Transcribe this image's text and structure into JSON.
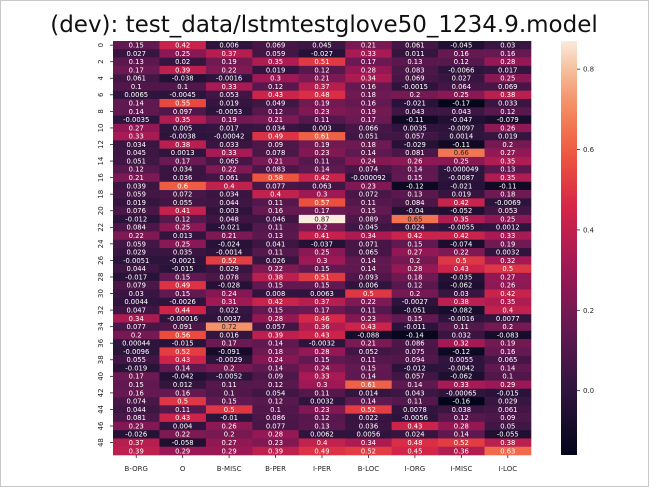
{
  "chart_data": {
    "type": "heatmap",
    "title": "(dev): test_data/lstmtestglove50_1234.9.model",
    "xlabel": "",
    "ylabel": "",
    "columns": [
      "B-ORG",
      "O",
      "B-MISC",
      "B-PER",
      "I-PER",
      "B-LOC",
      "I-ORG",
      "I-MISC",
      "I-LOC"
    ],
    "row_tick_labels": [
      "0",
      "2",
      "4",
      "6",
      "8",
      "10",
      "12",
      "14",
      "16",
      "18",
      "20",
      "22",
      "24",
      "26",
      "28",
      "30",
      "32",
      "34",
      "36",
      "38",
      "40",
      "42",
      "44",
      "46",
      "48"
    ],
    "colorbar": {
      "min": -0.16,
      "max": 0.87,
      "ticks": [
        0.8,
        0.6,
        0.4,
        0.2,
        0.0
      ],
      "tick_labels": [
        "0.8",
        "0.6",
        "0.4",
        "0.2",
        "0.0"
      ]
    },
    "grid": false,
    "values": [
      [
        0.15,
        0.42,
        0.006,
        0.069,
        0.045,
        0.21,
        0.061,
        -0.045,
        0.03
      ],
      [
        0.027,
        0.25,
        0.37,
        0.059,
        -0.027,
        0.33,
        0.011,
        0.16,
        0.16
      ],
      [
        0.13,
        0.02,
        0.19,
        0.35,
        0.51,
        0.17,
        0.13,
        0.12,
        0.28
      ],
      [
        0.17,
        0.39,
        0.22,
        0.019,
        0.12,
        0.28,
        0.083,
        -0.0066,
        0.017
      ],
      [
        0.061,
        -0.038,
        -0.0016,
        0.3,
        0.21,
        0.34,
        0.069,
        0.027,
        0.25
      ],
      [
        0.1,
        0.1,
        0.33,
        0.12,
        0.37,
        0.16,
        -0.0015,
        0.064,
        0.069
      ],
      [
        0.0065,
        -0.0045,
        0.053,
        0.43,
        0.48,
        0.18,
        0.2,
        0.25,
        0.38
      ],
      [
        0.14,
        0.55,
        0.019,
        0.049,
        0.19,
        0.16,
        -0.021,
        -0.17,
        0.033
      ],
      [
        0.14,
        0.097,
        -0.0053,
        0.12,
        0.23,
        0.19,
        0.043,
        0.043,
        0.12
      ],
      [
        -0.0035,
        0.35,
        0.19,
        0.21,
        0.11,
        0.17,
        -0.11,
        -0.047,
        -0.079
      ],
      [
        0.27,
        0.005,
        0.017,
        0.034,
        0.003,
        0.066,
        0.0035,
        -0.0097,
        0.26
      ],
      [
        0.33,
        -0.0038,
        -0.00042,
        0.49,
        0.61,
        0.051,
        0.057,
        0.0014,
        0.019
      ],
      [
        0.034,
        0.38,
        0.033,
        0.09,
        0.19,
        0.18,
        -0.029,
        -0.11,
        0.2
      ],
      [
        0.045,
        0.0013,
        0.33,
        0.078,
        0.23,
        0.14,
        0.081,
        0.66,
        0.27
      ],
      [
        0.051,
        0.17,
        0.065,
        0.21,
        0.11,
        0.24,
        0.26,
        0.25,
        0.35
      ],
      [
        0.12,
        0.034,
        0.22,
        0.083,
        0.14,
        0.074,
        0.14,
        -4.9e-05,
        0.13
      ],
      [
        0.21,
        0.036,
        0.061,
        0.58,
        0.42,
        -9.2e-05,
        0.15,
        -0.0087,
        0.35
      ],
      [
        0.039,
        0.6,
        0.4,
        0.077,
        0.063,
        0.23,
        -0.12,
        -0.021,
        -0.11
      ],
      [
        0.059,
        0.072,
        0.034,
        0.4,
        0.3,
        0.072,
        0.13,
        0.019,
        0.18
      ],
      [
        0.019,
        0.055,
        0.044,
        0.11,
        0.57,
        0.11,
        0.084,
        0.42,
        -0.0069
      ],
      [
        0.076,
        0.41,
        0.003,
        0.16,
        0.17,
        0.15,
        -0.04,
        -0.052,
        0.053
      ],
      [
        -0.012,
        0.12,
        0.048,
        0.046,
        0.87,
        0.089,
        0.65,
        0.35,
        0.25
      ],
      [
        0.084,
        0.25,
        -0.021,
        0.11,
        0.2,
        0.045,
        0.024,
        -0.0055,
        0.0012
      ],
      [
        0.22,
        0.013,
        0.21,
        0.13,
        0.41,
        0.34,
        0.42,
        0.42,
        0.33
      ],
      [
        0.059,
        0.25,
        -0.024,
        0.041,
        -0.037,
        0.071,
        0.15,
        -0.074,
        0.19
      ],
      [
        0.029,
        0.035,
        -0.0014,
        0.11,
        0.25,
        0.065,
        0.27,
        0.22,
        0.0032
      ],
      [
        -0.0051,
        -0.0021,
        0.52,
        0.026,
        0.3,
        0.14,
        0.2,
        0.5,
        0.32
      ],
      [
        0.044,
        -0.015,
        0.029,
        0.22,
        0.15,
        0.14,
        0.28,
        0.43,
        0.5
      ],
      [
        -0.017,
        0.15,
        0.078,
        0.38,
        0.51,
        0.093,
        0.18,
        -0.035,
        0.27
      ],
      [
        0.079,
        0.49,
        -0.028,
        0.15,
        0.15,
        0.006,
        0.12,
        -0.062,
        0.26
      ],
      [
        0.03,
        0.15,
        0.24,
        0.008,
        0.0063,
        0.5,
        0.2,
        0.03,
        0.42
      ],
      [
        0.0044,
        -0.0026,
        0.31,
        0.42,
        0.37,
        0.22,
        -0.0027,
        0.38,
        0.35
      ],
      [
        0.047,
        0.44,
        0.022,
        0.15,
        0.17,
        0.11,
        -0.051,
        -0.082,
        0.4
      ],
      [
        0.34,
        -0.00016,
        0.0037,
        0.28,
        0.46,
        0.23,
        0.15,
        -0.0016,
        0.0077
      ],
      [
        0.077,
        0.091,
        0.72,
        0.057,
        0.36,
        0.43,
        -0.011,
        0.11,
        0.2
      ],
      [
        0.2,
        0.56,
        0.016,
        0.39,
        0.43,
        -0.088,
        -0.14,
        0.032,
        -0.083
      ],
      [
        0.00044,
        -0.015,
        0.17,
        0.14,
        -0.0032,
        0.21,
        0.086,
        0.32,
        0.19
      ],
      [
        -0.0096,
        0.52,
        -0.091,
        0.18,
        0.28,
        0.052,
        0.075,
        -0.12,
        0.16
      ],
      [
        0.055,
        0.43,
        -0.0029,
        0.24,
        0.15,
        0.11,
        0.094,
        0.0055,
        0.065
      ],
      [
        -0.019,
        0.14,
        0.2,
        0.14,
        0.24,
        0.15,
        -0.012,
        -0.0042,
        0.14
      ],
      [
        0.17,
        -0.042,
        -0.0052,
        0.09,
        0.33,
        0.14,
        0.057,
        -0.062,
        0.1
      ],
      [
        0.15,
        0.012,
        0.11,
        0.12,
        0.3,
        0.61,
        0.14,
        0.33,
        0.29
      ],
      [
        0.16,
        0.16,
        0.1,
        0.054,
        0.11,
        0.014,
        0.043,
        -0.00065,
        -0.015
      ],
      [
        0.074,
        0.5,
        0.15,
        0.12,
        0.0032,
        0.14,
        0.11,
        -0.16,
        0.029
      ],
      [
        0.044,
        0.11,
        0.5,
        0.1,
        0.23,
        0.52,
        0.0078,
        0.038,
        0.061
      ],
      [
        0.081,
        0.43,
        -0.01,
        0.086,
        0.12,
        0.022,
        -0.0056,
        0.12,
        0.09
      ],
      [
        0.23,
        0.004,
        0.26,
        0.077,
        0.13,
        0.036,
        0.43,
        0.28,
        0.05
      ],
      [
        -0.026,
        0.22,
        0.2,
        0.28,
        0.0062,
        0.0056,
        0.024,
        0.14,
        -0.055
      ],
      [
        0.37,
        -0.058,
        0.27,
        0.23,
        0.4,
        0.34,
        0.48,
        0.52,
        0.38
      ],
      [
        0.39,
        0.29,
        0.29,
        0.39,
        0.49,
        0.52,
        0.45,
        0.36,
        0.63
      ]
    ]
  }
}
